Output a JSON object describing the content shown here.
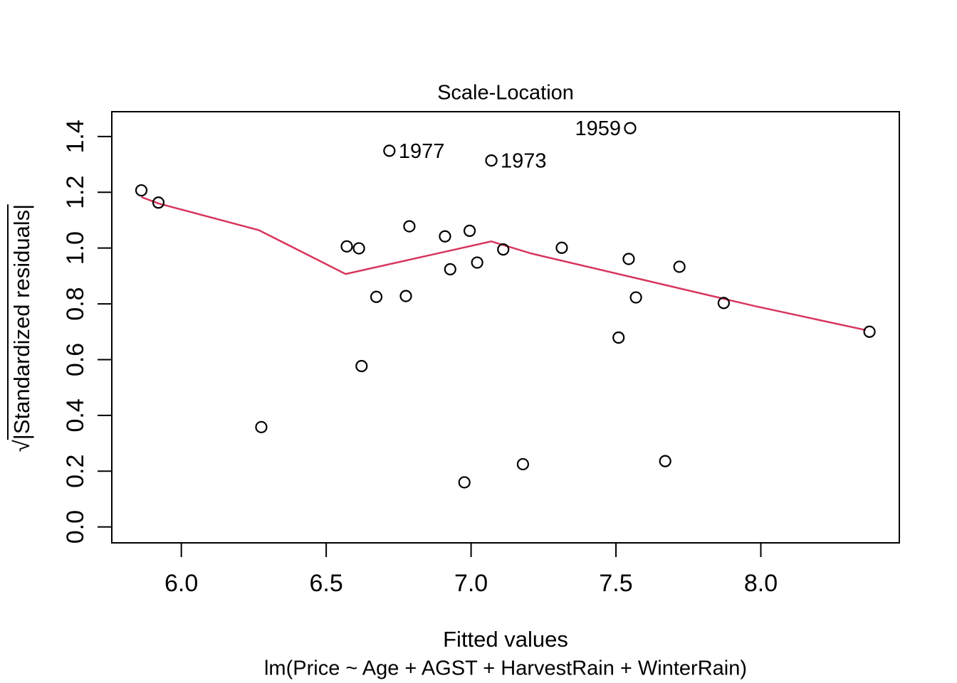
{
  "title": "Scale-Location",
  "x_axis": {
    "label": "Fitted values",
    "tick_labels": [
      "6.0",
      "6.5",
      "7.0",
      "7.5",
      "8.0"
    ]
  },
  "y_axis": {
    "label": "√|Standardized residuals|",
    "tick_labels": [
      "0.0",
      "0.2",
      "0.4",
      "0.6",
      "0.8",
      "1.0",
      "1.2",
      "1.4"
    ]
  },
  "y_axis_display": {
    "sqrt": "√",
    "radicand": "|Standardized residuals|"
  },
  "caption": "lm(Price ~ Age + AGST + HarvestRain + WinterRain)",
  "colors": {
    "smooth_line": "#D8365C",
    "point_stroke": "#000000",
    "axis": "#000000",
    "background": "#FFFFFF"
  },
  "chart_data": {
    "type": "scatter",
    "title": "Scale-Location",
    "xlabel": "Fitted values",
    "ylabel": "√|Standardized residuals|",
    "caption": "lm(Price ~ Age + AGST + HarvestRain + WinterRain)",
    "grid": false,
    "legend": "none",
    "xlim": [
      5.76,
      8.478
    ],
    "ylim": [
      -0.057,
      1.489
    ],
    "x_ticks": [
      6.0,
      6.5,
      7.0,
      7.5,
      8.0
    ],
    "x_tick_labels": [
      "6.0",
      "6.5",
      "7.0",
      "7.5",
      "8.0"
    ],
    "y_ticks": [
      0.0,
      0.2,
      0.4,
      0.6,
      0.8,
      1.0,
      1.2,
      1.4
    ],
    "y_tick_labels": [
      "0.0",
      "0.2",
      "0.4",
      "0.6",
      "0.8",
      "1.0",
      "1.2",
      "1.4"
    ],
    "points": [
      {
        "x": 5.862,
        "y": 1.207
      },
      {
        "x": 5.921,
        "y": 1.163
      },
      {
        "x": 6.276,
        "y": 0.358
      },
      {
        "x": 6.571,
        "y": 1.006
      },
      {
        "x": 6.613,
        "y": 0.999
      },
      {
        "x": 6.622,
        "y": 0.577
      },
      {
        "x": 6.673,
        "y": 0.825
      },
      {
        "x": 6.718,
        "y": 1.349,
        "label": "1977",
        "label_side": "right"
      },
      {
        "x": 6.775,
        "y": 0.828
      },
      {
        "x": 6.787,
        "y": 1.078
      },
      {
        "x": 6.91,
        "y": 1.042
      },
      {
        "x": 6.928,
        "y": 0.924
      },
      {
        "x": 6.977,
        "y": 0.16
      },
      {
        "x": 6.995,
        "y": 1.062
      },
      {
        "x": 7.021,
        "y": 0.948
      },
      {
        "x": 7.07,
        "y": 1.314,
        "label": "1973",
        "label_side": "right"
      },
      {
        "x": 7.111,
        "y": 0.995
      },
      {
        "x": 7.179,
        "y": 0.225
      },
      {
        "x": 7.313,
        "y": 1.001
      },
      {
        "x": 7.509,
        "y": 0.679
      },
      {
        "x": 7.549,
        "y": 1.43,
        "label": "1959",
        "label_side": "left"
      },
      {
        "x": 7.544,
        "y": 0.961
      },
      {
        "x": 7.569,
        "y": 0.823
      },
      {
        "x": 7.67,
        "y": 0.236
      },
      {
        "x": 7.719,
        "y": 0.933
      },
      {
        "x": 7.872,
        "y": 0.803
      },
      {
        "x": 8.375,
        "y": 0.7
      }
    ],
    "smooth_line": [
      [
        5.862,
        1.183
      ],
      [
        5.921,
        1.16
      ],
      [
        6.268,
        1.064
      ],
      [
        6.567,
        0.907
      ],
      [
        7.07,
        1.024
      ],
      [
        7.21,
        0.98
      ],
      [
        7.979,
        0.792
      ],
      [
        8.362,
        0.706
      ]
    ]
  }
}
